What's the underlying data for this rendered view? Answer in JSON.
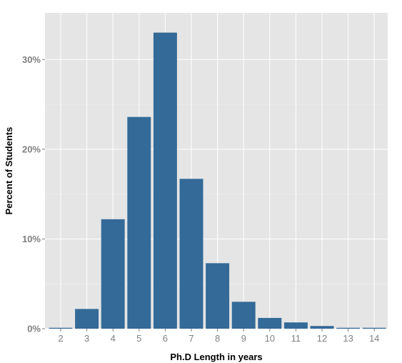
{
  "chart_data": {
    "type": "bar",
    "title": "",
    "xlabel": "Ph.D Length in years",
    "ylabel": "Percent of Students",
    "categories": [
      "2",
      "3",
      "4",
      "5",
      "6",
      "7",
      "8",
      "9",
      "10",
      "11",
      "12",
      "13",
      "14"
    ],
    "values": [
      0.1,
      2.2,
      12.2,
      23.6,
      33.0,
      16.7,
      7.3,
      3.0,
      1.2,
      0.7,
      0.3,
      0.1,
      0.1
    ],
    "ylim": [
      0,
      35.2
    ],
    "yticks": [
      0,
      10,
      20,
      30
    ],
    "ytick_labels": [
      "0%",
      "10%",
      "20%",
      "30%"
    ],
    "grid": true,
    "legend": "none",
    "colors": {
      "bar": "#336a98",
      "panel": "#e5e5e5",
      "grid": "#ffffff",
      "tick_text": "#7f7f7f",
      "axis_title": "#000000"
    }
  }
}
